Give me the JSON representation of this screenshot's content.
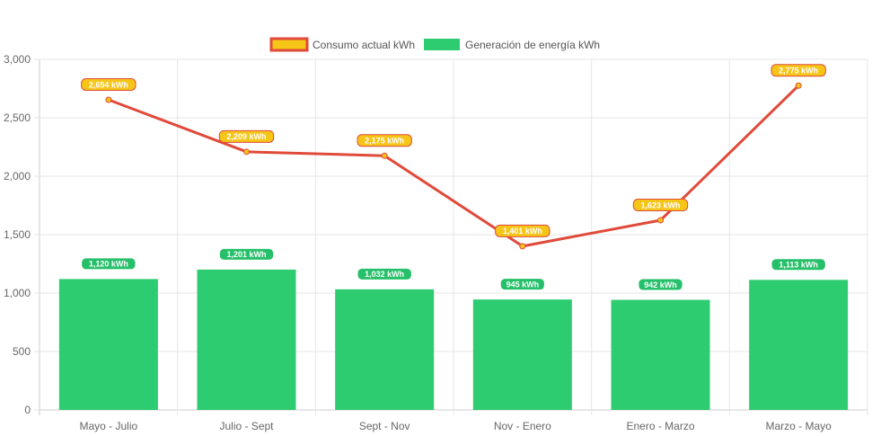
{
  "legend": {
    "consumption_label": "Consumo actual kWh",
    "generation_label": "Generación de energía kWh"
  },
  "colors": {
    "line": "#e04a3a",
    "line_fill": "#f5c518",
    "bar": "#2ecc71",
    "grid": "#e6e6e6",
    "axis": "#cccccc"
  },
  "chart_data": {
    "type": "bar",
    "categories": [
      "Mayo - Julio",
      "Julio - Sept",
      "Sept - Nov",
      "Nov - Enero",
      "Enero - Marzo",
      "Marzo - Mayo"
    ],
    "series": [
      {
        "name": "Consumo actual kWh",
        "type": "line",
        "values": [
          2654,
          2209,
          2175,
          1401,
          1623,
          2775
        ],
        "labels": [
          "2,654 kWh",
          "2,209 kWh",
          "2,175 kWh",
          "1,401 kWh",
          "1,623 kWh",
          "2,775 kWh"
        ]
      },
      {
        "name": "Generación de energía kWh",
        "type": "bar",
        "values": [
          1120,
          1201,
          1032,
          945,
          942,
          1113
        ],
        "labels": [
          "1,120 kWh",
          "1,201 kWh",
          "1,032 kWh",
          "945 kWh",
          "942 kWh",
          "1,113 kWh"
        ]
      }
    ],
    "y_ticks": [
      "0",
      "500",
      "1,000",
      "1,500",
      "2,000",
      "2,500",
      "3,000"
    ],
    "ylim": [
      0,
      3000
    ],
    "grid": true,
    "legend_position": "top-center"
  }
}
